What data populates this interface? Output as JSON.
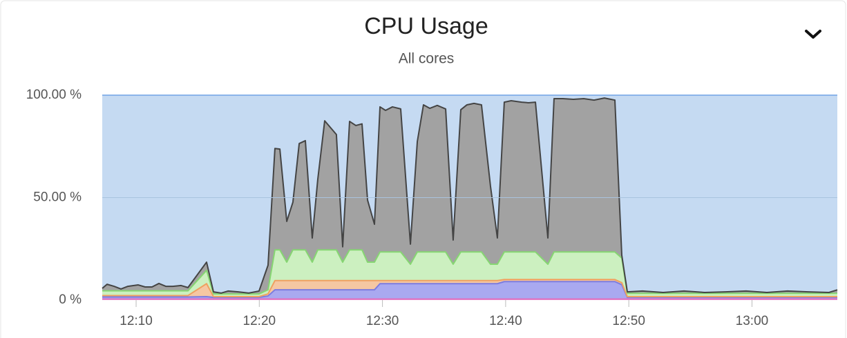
{
  "chart_data": {
    "type": "stacked-area",
    "title": "CPU Usage",
    "subtitle": "All cores",
    "x": [
      7.25,
      7.64,
      8.21,
      8.77,
      9.33,
      10.17,
      10.73,
      11.29,
      11.85,
      12.41,
      12.97,
      13.65,
      14.21,
      15.72,
      16.28,
      16.9,
      17.46,
      18.3,
      19.14,
      19.98,
      20.71,
      21.27,
      21.67,
      22.23,
      22.73,
      23.24,
      23.74,
      24.3,
      24.75,
      25.31,
      26.26,
      26.77,
      27.33,
      27.84,
      28.34,
      28.79,
      29.35,
      29.8,
      30.25,
      30.81,
      31.48,
      32.27,
      32.83,
      33.33,
      33.84,
      34.45,
      35.13,
      35.74,
      36.36,
      36.86,
      37.43,
      38.04,
      38.77,
      39.33,
      39.89,
      40.45,
      41.3,
      41.86,
      42.42,
      43.43,
      43.93,
      44.66,
      45.5,
      46.34,
      47.18,
      48.02,
      48.87,
      49.43,
      49.88,
      51.11,
      52.79,
      54.48,
      56.16,
      57.84,
      59.52,
      61.21,
      62.89,
      64.57,
      66.25,
      66.93
    ],
    "series": [
      {
        "color": "#e070c0",
        "values": [
          0.5,
          0.5,
          0.5,
          0.5,
          0.5,
          0.5,
          0.5,
          0.5,
          0.5,
          0.5,
          0.5,
          0.5,
          0.5,
          0.5,
          0.5,
          0.5,
          0.5,
          0.5,
          0.5,
          0.5,
          0.5,
          0.5,
          0.5,
          0.5,
          0.5,
          0.5,
          0.5,
          0.5,
          0.5,
          0.5,
          0.5,
          0.5,
          0.5,
          0.5,
          0.5,
          0.5,
          0.5,
          0.5,
          0.5,
          0.5,
          0.5,
          0.5,
          0.5,
          0.5,
          0.5,
          0.5,
          0.5,
          0.5,
          0.5,
          0.5,
          0.5,
          0.5,
          0.5,
          0.5,
          0.5,
          0.5,
          0.5,
          0.5,
          0.5,
          0.5,
          0.5,
          0.5,
          0.5,
          0.5,
          0.5,
          0.5,
          0.5,
          0.5,
          0.5,
          0.5,
          0.5,
          0.5,
          0.5,
          0.5,
          0.5,
          0.5,
          0.5,
          0.5,
          0.5,
          0.5
        ]
      },
      {
        "color": "#7c7ce0",
        "values": [
          1,
          1,
          1,
          1,
          1,
          1,
          1,
          1,
          1,
          1,
          1,
          1,
          1,
          1.2,
          0.8,
          0.8,
          0.8,
          0.8,
          0.8,
          0.8,
          1.5,
          4.5,
          4.5,
          4.5,
          4.5,
          4.5,
          4.5,
          4.5,
          4.5,
          4.5,
          4.5,
          4.5,
          4.5,
          4.5,
          4.5,
          4.5,
          4.5,
          7.5,
          7.5,
          7.5,
          7.5,
          7.5,
          7.5,
          7.5,
          7.5,
          7.5,
          7.5,
          7.5,
          7.5,
          7.5,
          7.5,
          7.5,
          7.5,
          7.5,
          8.5,
          8.5,
          8.5,
          8.5,
          8.5,
          8.5,
          8.5,
          8.5,
          8.5,
          8.5,
          8.5,
          8.5,
          8.5,
          7,
          0.8,
          0.8,
          0.8,
          0.8,
          0.8,
          0.8,
          0.8,
          0.8,
          0.8,
          0.8,
          0.8,
          0.8
        ]
      },
      {
        "color": "#f0a060",
        "values": [
          0.7,
          0.7,
          0.7,
          0.7,
          0.7,
          0.7,
          0.7,
          0.7,
          0.7,
          0.7,
          0.7,
          0.7,
          0.7,
          6.3,
          0.4,
          0.4,
          0.4,
          0.4,
          0.4,
          0.4,
          1,
          4.5,
          4.5,
          4.5,
          4.5,
          4.5,
          4.5,
          4.5,
          4.5,
          4.5,
          4.5,
          4.5,
          4.5,
          4.5,
          4.5,
          4.5,
          4.5,
          1.5,
          1.5,
          1.5,
          1.5,
          1.5,
          1.5,
          1.5,
          1.5,
          1.5,
          1.5,
          1.5,
          1.5,
          1.5,
          1.5,
          1.5,
          1.5,
          1.5,
          1,
          1,
          1,
          1,
          1,
          1,
          1,
          1,
          1,
          1,
          1,
          1,
          1,
          1,
          0.4,
          0.4,
          0.4,
          0.4,
          0.4,
          0.4,
          0.4,
          0.4,
          0.4,
          0.4,
          0.4,
          0.4
        ]
      },
      {
        "color": "#86d672",
        "values": [
          2.3,
          2.3,
          2.3,
          2.3,
          2.3,
          2.3,
          2.3,
          2.3,
          2.3,
          2.3,
          2.3,
          2.3,
          2.3,
          6.5,
          1.3,
          1.3,
          1.3,
          1.3,
          1.3,
          1.3,
          2,
          15,
          15,
          9,
          15,
          15,
          15,
          9,
          15,
          15,
          15,
          9,
          15,
          15,
          15,
          9,
          9,
          14,
          14,
          14,
          14,
          8,
          14,
          14,
          14,
          14,
          14,
          8,
          14,
          14,
          14,
          14,
          8,
          8,
          13.5,
          13.5,
          13.5,
          13.5,
          13.5,
          7.5,
          13.5,
          13.5,
          13.5,
          13.5,
          13.5,
          13.5,
          13.5,
          12,
          1.6,
          1.6,
          1.6,
          1.6,
          1.6,
          1.6,
          1.6,
          1.6,
          1.6,
          1.6,
          1.6,
          1.6
        ]
      },
      {
        "color": "#444444",
        "values": [
          1.2,
          3.2,
          2.2,
          0.9,
          2.2,
          2.9,
          1.9,
          1.9,
          3.6,
          2.2,
          2.2,
          2.6,
          1.6,
          4.0,
          1.0,
          0.4,
          1.4,
          1.0,
          0.4,
          1.4,
          12,
          49.5,
          49.2,
          19.9,
          23.3,
          51.9,
          53.3,
          11.8,
          34.5,
          63,
          56.3,
          7.5,
          62.7,
          60.7,
          61.5,
          30.3,
          18.5,
          70.8,
          69.1,
          70.8,
          69.8,
          9.8,
          53.9,
          71.8,
          70.1,
          71.5,
          69.8,
          11.8,
          69.4,
          71.8,
          72.5,
          71.8,
          38.1,
          12.8,
          73.1,
          73.8,
          73.1,
          72.8,
          73.1,
          12.8,
          74.8,
          74.8,
          74.5,
          74.8,
          74.1,
          75.1,
          74.1,
          1.4,
          0.7,
          1.1,
          0.4,
          1.1,
          0.4,
          0.7,
          1.1,
          0.4,
          1.1,
          0.7,
          0.4,
          1.7
        ]
      }
    ],
    "fills": [
      "#e8a0d0",
      "#a9a9f0",
      "#f5c7a2",
      "#ccf0c0",
      "#a2a2a2"
    ],
    "xlim": [
      7.25,
      66.93
    ],
    "ylim": [
      0,
      100
    ],
    "xticks": [
      {
        "value": 10,
        "label": "12:10"
      },
      {
        "value": 20,
        "label": "12:20"
      },
      {
        "value": 30,
        "label": "12:30"
      },
      {
        "value": 40,
        "label": "12:40"
      },
      {
        "value": 50,
        "label": "12:50"
      },
      {
        "value": 60,
        "label": "13:00"
      }
    ],
    "yticks": [
      {
        "value": 0,
        "label": "0 %"
      },
      {
        "value": 50,
        "label": "50.00 %"
      },
      {
        "value": 100,
        "label": "100.00 %"
      }
    ],
    "grid": true,
    "plot_background": "#c5daf2"
  }
}
